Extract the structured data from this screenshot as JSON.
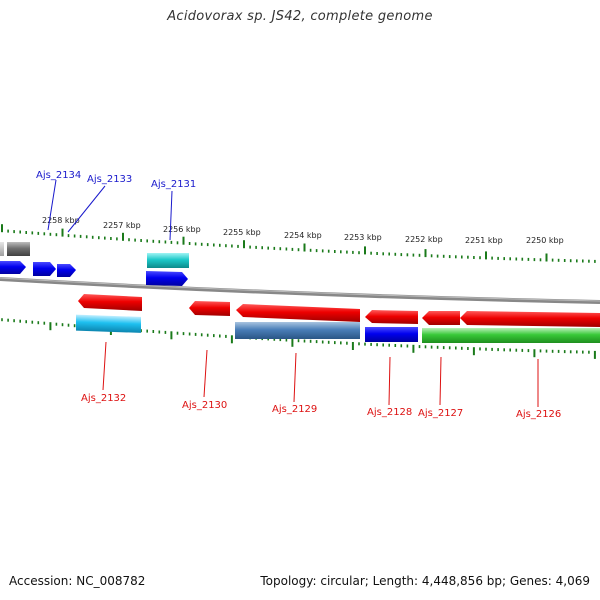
{
  "title": "Acidovorax sp. JS42, complete genome",
  "footer": {
    "accession": "Accession: NC_008782",
    "topology": "Topology: circular; Length: 4,448,856 bp; Genes: 4,069"
  },
  "colors": {
    "backbone": "#808080",
    "tick": "#1a7a1a",
    "label_top": "#1a1acc",
    "label_bottom": "#dd1111"
  },
  "scale_labels": [
    "2258 kbp",
    "2257 kbp",
    "2256 kbp",
    "2255 kbp",
    "2254 kbp",
    "2253 kbp",
    "2252 kbp",
    "2251 kbp",
    "2250 kbp"
  ],
  "genes_top_labels": [
    "Ajs_2134",
    "Ajs_2133",
    "Ajs_2131"
  ],
  "genes_bottom_labels": [
    "Ajs_2132",
    "Ajs_2130",
    "Ajs_2129",
    "Ajs_2128",
    "Ajs_2127",
    "Ajs_2126"
  ]
}
